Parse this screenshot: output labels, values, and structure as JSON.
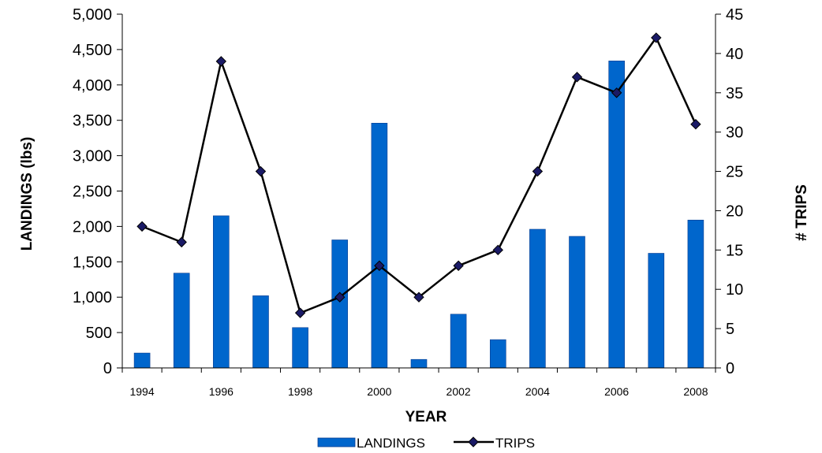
{
  "chart_data": {
    "type": "bar",
    "title": "",
    "xlabel": "YEAR",
    "ylabel": "LANDINGS (lbs)",
    "y2label": "# TRIPS",
    "categories": [
      "1994",
      "1995",
      "1996",
      "1997",
      "1998",
      "1999",
      "2000",
      "2001",
      "2002",
      "2003",
      "2004",
      "2005",
      "2006",
      "2007",
      "2008"
    ],
    "x_tick_labels": [
      "1994",
      "",
      "1996",
      "",
      "1998",
      "",
      "2000",
      "",
      "2002",
      "",
      "2004",
      "",
      "2006",
      "",
      "2008"
    ],
    "ylim": [
      0,
      5000
    ],
    "y_ticks": [
      0,
      500,
      1000,
      1500,
      2000,
      2500,
      3000,
      3500,
      4000,
      4500,
      5000
    ],
    "y_tick_labels": [
      "0",
      "500",
      "1,000",
      "1,500",
      "2,000",
      "2,500",
      "3,000",
      "3,500",
      "4,000",
      "4,500",
      "5,000"
    ],
    "y2lim": [
      0,
      45
    ],
    "y2_ticks": [
      0,
      5,
      10,
      15,
      20,
      25,
      30,
      35,
      40,
      45
    ],
    "y2_tick_labels": [
      "0",
      "5",
      "10",
      "15",
      "20",
      "25",
      "30",
      "35",
      "40",
      "45"
    ],
    "grid": false,
    "legend_position": "bottom",
    "series": [
      {
        "name": "LANDINGS",
        "kind": "bar",
        "axis": "left",
        "color": "#0066cc",
        "values": [
          210,
          1340,
          2150,
          1020,
          570,
          1810,
          3460,
          120,
          760,
          400,
          1960,
          1860,
          4340,
          1620,
          2090
        ]
      },
      {
        "name": "TRIPS",
        "kind": "line",
        "axis": "right",
        "color": "#000000",
        "marker": "diamond",
        "marker_color": "#1a1a66",
        "values": [
          18,
          16,
          39,
          25,
          7,
          9,
          13,
          9,
          13,
          15,
          25,
          37,
          35,
          42,
          31
        ]
      }
    ]
  }
}
